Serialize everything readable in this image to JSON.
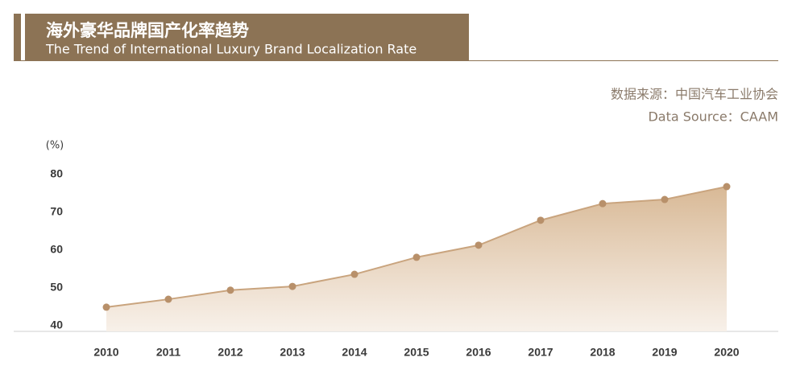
{
  "chart_data": {
    "type": "area_line",
    "title": "海外豪华品牌国产化率趋势",
    "subtitle": "The Trend of International Luxury Brand Localization Rate",
    "source_cn": "数据来源：中国汽车工业协会",
    "source_en": "Data Source：CAAM",
    "y_label": "(%)",
    "categories": [
      "2010",
      "2011",
      "2012",
      "2013",
      "2014",
      "2015",
      "2016",
      "2017",
      "2018",
      "2019",
      "2020"
    ],
    "values": [
      44.9,
      47.0,
      49.4,
      50.4,
      53.6,
      58.1,
      61.3,
      67.9,
      72.3,
      73.4,
      76.8
    ],
    "color": "#c9a47e",
    "ylim": [
      38.5,
      80
    ],
    "yticks": [
      40,
      50,
      60,
      70,
      80
    ],
    "grid": false
  }
}
